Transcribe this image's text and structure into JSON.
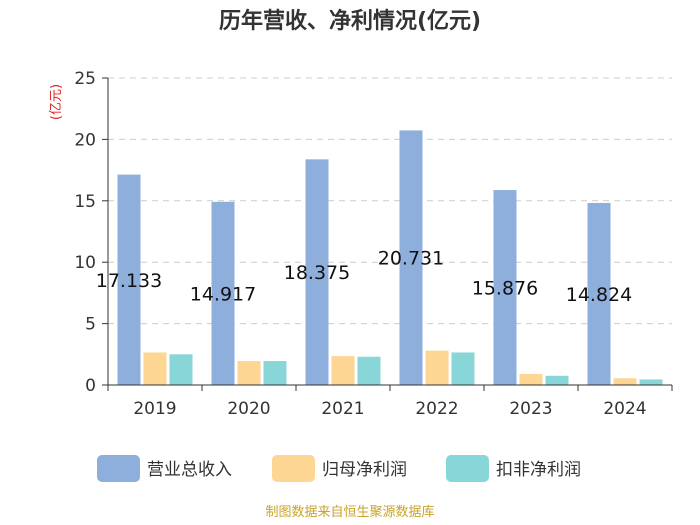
{
  "chart_data": {
    "type": "bar",
    "title": "历年营收、净利情况(亿元)",
    "ylabel": "(亿元)",
    "xlabel": "",
    "categories": [
      "2019",
      "2020",
      "2021",
      "2022",
      "2023",
      "2024"
    ],
    "ylim": [
      0,
      25
    ],
    "yticks": [
      0,
      5,
      10,
      15,
      20,
      25
    ],
    "grid": true,
    "legend_position": "bottom",
    "series": [
      {
        "name": "营业总收入",
        "color": "#8eaedc",
        "values": [
          17.133,
          14.917,
          18.375,
          20.731,
          15.876,
          14.824
        ],
        "labels": [
          "17.133",
          "14.917",
          "18.375",
          "20.731",
          "15.876",
          "14.824"
        ]
      },
      {
        "name": "归母净利润",
        "color": "#fdd694",
        "values": [
          2.65,
          1.95,
          2.35,
          2.8,
          0.9,
          0.55
        ]
      },
      {
        "name": "扣非净利润",
        "color": "#88d6d8",
        "values": [
          2.5,
          1.95,
          2.3,
          2.65,
          0.75,
          0.45
        ]
      }
    ],
    "source": "制图数据来自恒生聚源数据库"
  }
}
